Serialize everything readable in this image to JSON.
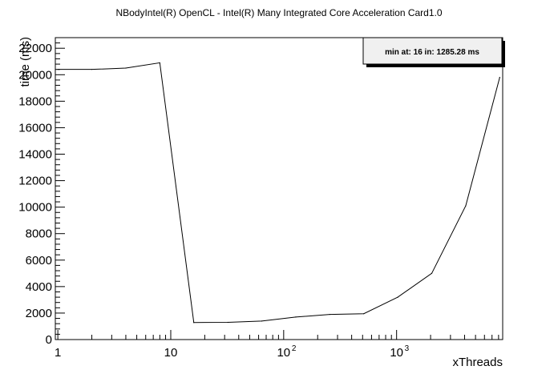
{
  "chart_data": {
    "type": "line",
    "title": "NBodyIntel(R) OpenCL - Intel(R) Many Integrated Core Acceleration Card1.0",
    "xlabel": "xThreads",
    "ylabel": "time (ms)",
    "x_scale": "log",
    "xlim": [
      0.95,
      8700
    ],
    "ylim": [
      0,
      22800
    ],
    "x_tick_labels": [
      {
        "value": 1,
        "label": "1"
      },
      {
        "value": 10,
        "label": "10"
      },
      {
        "value": 100,
        "label": "10",
        "exp": "2"
      },
      {
        "value": 1000,
        "label": "10",
        "exp": "3"
      }
    ],
    "y_ticks": [
      0,
      2000,
      4000,
      6000,
      8000,
      10000,
      12000,
      14000,
      16000,
      18000,
      20000,
      22000
    ],
    "series": [
      {
        "x": [
          1,
          2,
          4,
          8,
          16,
          32,
          64,
          128,
          256,
          512,
          1024,
          2048,
          4096,
          8192
        ],
        "y": [
          20400,
          20400,
          20500,
          20900,
          1285.28,
          1300,
          1400,
          1700,
          1900,
          1950,
          3200,
          5000,
          10100,
          19800
        ],
        "color": "#000000"
      }
    ],
    "stat_box": {
      "text": "min at: 16 in: 1285.28 ms",
      "position": "top-right"
    },
    "grid": false
  }
}
